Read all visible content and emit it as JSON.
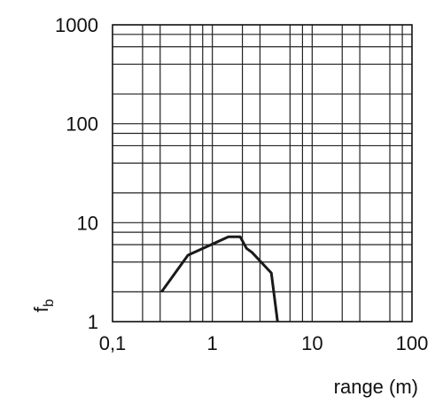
{
  "chart_data": {
    "type": "line",
    "log_x": true,
    "log_y": true,
    "grid": true,
    "xlabel": "range (m)",
    "ylabel": "f",
    "ylabel_subscript": "b",
    "xlim": [
      0.1,
      100
    ],
    "ylim": [
      1,
      1000
    ],
    "xticks": [
      {
        "value": 0.1,
        "label": "0,1"
      },
      1,
      10,
      100
    ],
    "yticks": [
      1,
      10,
      100,
      1000
    ],
    "x_minor_grid": [
      0.2,
      0.3,
      0.6,
      0.8,
      2,
      3,
      6,
      8,
      20,
      30,
      60,
      80
    ],
    "y_minor_grid": [
      2,
      4,
      6,
      8,
      20,
      40,
      60,
      80,
      200,
      400,
      600,
      800
    ],
    "series": [
      {
        "color": "#1a1a1a",
        "x": [
          0.31,
          0.57,
          1.45,
          1.9,
          2.2,
          2.5,
          3.9,
          4.5
        ],
        "values": [
          2,
          4.7,
          7.2,
          7.2,
          5.5,
          5,
          3.1,
          1
        ]
      }
    ]
  }
}
